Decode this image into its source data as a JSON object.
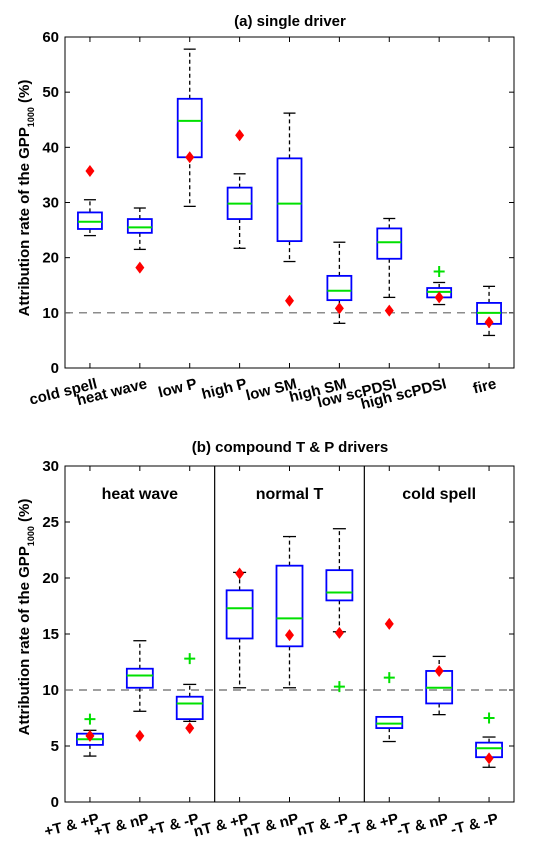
{
  "chart_data": [
    {
      "type": "box",
      "title": "(a) single driver",
      "ylabel_main": "Attribution rate of the GPP",
      "ylabel_sub": "1000",
      "ylabel_unit": " (%)",
      "ylim": [
        0,
        60
      ],
      "yticks": [
        0,
        10,
        20,
        30,
        40,
        50,
        60
      ],
      "reference_line": 10,
      "categories": [
        "cold spell",
        "heat wave",
        "low P",
        "high P",
        "low SM",
        "high SM",
        "low scPDSI",
        "high scPDSI",
        "fire"
      ],
      "boxes": [
        {
          "low": 24,
          "q1": 25.2,
          "median": 26.5,
          "q3": 28.2,
          "high": 30.5,
          "diamond": 35.7,
          "outliers": []
        },
        {
          "low": 21.5,
          "q1": 24.5,
          "median": 25.5,
          "q3": 27,
          "high": 29,
          "diamond": 18.2,
          "outliers": []
        },
        {
          "low": 29.3,
          "q1": 38.2,
          "median": 44.8,
          "q3": 48.8,
          "high": 57.8,
          "diamond": 38.2,
          "outliers": []
        },
        {
          "low": 21.7,
          "q1": 27,
          "median": 29.8,
          "q3": 32.7,
          "high": 35.2,
          "diamond": 42.2,
          "outliers": []
        },
        {
          "low": 19.3,
          "q1": 23,
          "median": 29.8,
          "q3": 38,
          "high": 46.2,
          "diamond": 12.2,
          "outliers": []
        },
        {
          "low": 8.1,
          "q1": 12.3,
          "median": 14,
          "q3": 16.7,
          "high": 22.8,
          "diamond": 10.8,
          "outliers": []
        },
        {
          "low": 12.8,
          "q1": 19.8,
          "median": 22.8,
          "q3": 25.3,
          "high": 27.1,
          "diamond": 10.4,
          "outliers": []
        },
        {
          "low": 11.5,
          "q1": 12.8,
          "median": 13.8,
          "q3": 14.5,
          "high": 15.5,
          "diamond": 12.8,
          "outliers": [
            17.5
          ]
        },
        {
          "low": 5.9,
          "q1": 8,
          "median": 10,
          "q3": 11.8,
          "high": 14.8,
          "diamond": 8.3,
          "outliers": []
        }
      ]
    },
    {
      "type": "box",
      "title": "(b) compound T & P drivers",
      "ylabel_main": "Attribution rate of the GPP",
      "ylabel_sub": "1000",
      "ylabel_unit": " (%)",
      "ylim": [
        0,
        30
      ],
      "yticks": [
        0,
        5,
        10,
        15,
        20,
        25,
        30
      ],
      "reference_line": 10,
      "groups": [
        "heat wave",
        "normal T",
        "cold spell"
      ],
      "categories": [
        "+T & +P",
        "+T & nP",
        "+T & -P",
        "nT & +P",
        "nT & nP",
        "nT & -P",
        "-T & +P",
        "-T & nP",
        "-T & -P"
      ],
      "boxes": [
        {
          "low": 4.1,
          "q1": 5.1,
          "median": 5.6,
          "q3": 6.1,
          "high": 6.4,
          "diamond": 5.9,
          "outliers": [
            7.4
          ]
        },
        {
          "low": 8.1,
          "q1": 10.2,
          "median": 11.3,
          "q3": 11.9,
          "high": 14.4,
          "diamond": 5.9,
          "outliers": []
        },
        {
          "low": 7.2,
          "q1": 7.4,
          "median": 8.8,
          "q3": 9.4,
          "high": 10.5,
          "diamond": 6.6,
          "outliers": [
            12.8
          ]
        },
        {
          "low": 10.2,
          "q1": 14.6,
          "median": 17.3,
          "q3": 18.9,
          "high": 20.5,
          "diamond": 20.4,
          "outliers": []
        },
        {
          "low": 10.2,
          "q1": 13.9,
          "median": 16.4,
          "q3": 21.1,
          "high": 23.7,
          "diamond": 14.9,
          "outliers": []
        },
        {
          "low": 15.2,
          "q1": 18,
          "median": 18.7,
          "q3": 20.7,
          "high": 24.4,
          "diamond": 15.1,
          "outliers": [
            10.3
          ]
        },
        {
          "low": 5.4,
          "q1": 6.6,
          "median": 7,
          "q3": 7.6,
          "high": 7.6,
          "diamond": 15.9,
          "outliers": [
            11.1
          ]
        },
        {
          "low": 7.8,
          "q1": 8.8,
          "median": 10.2,
          "q3": 11.7,
          "high": 13,
          "diamond": 11.7,
          "outliers": []
        },
        {
          "low": 3.1,
          "q1": 4,
          "median": 4.8,
          "q3": 5.3,
          "high": 5.8,
          "diamond": 3.9,
          "outliers": [
            7.5
          ]
        }
      ]
    }
  ],
  "colors": {
    "box": "#0000ff",
    "median": "#00e000",
    "diamond": "#ff0000",
    "outlier": "#00e000",
    "whisker": "#000000",
    "refline": "#666666"
  }
}
